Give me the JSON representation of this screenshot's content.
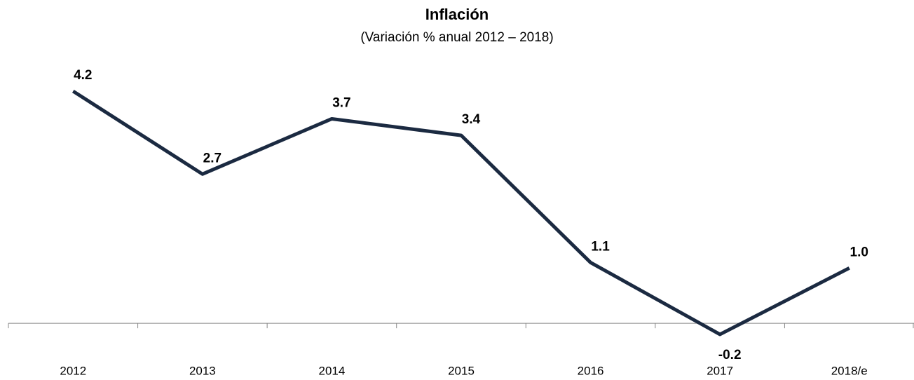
{
  "chart_data": {
    "type": "line",
    "title": "Inflación",
    "subtitle": "(Variación % anual 2012 – 2018)",
    "categories": [
      "2012",
      "2013",
      "2014",
      "2015",
      "2016",
      "2017",
      "2018/e"
    ],
    "values": [
      4.2,
      2.7,
      3.7,
      3.4,
      1.1,
      -0.2,
      1.0
    ],
    "value_labels": [
      "4.2",
      "2.7",
      "3.7",
      "3.4",
      "1.1",
      "-0.2",
      "1.0"
    ],
    "color": "#1b2a41",
    "ylim": [
      -1,
      5
    ]
  }
}
